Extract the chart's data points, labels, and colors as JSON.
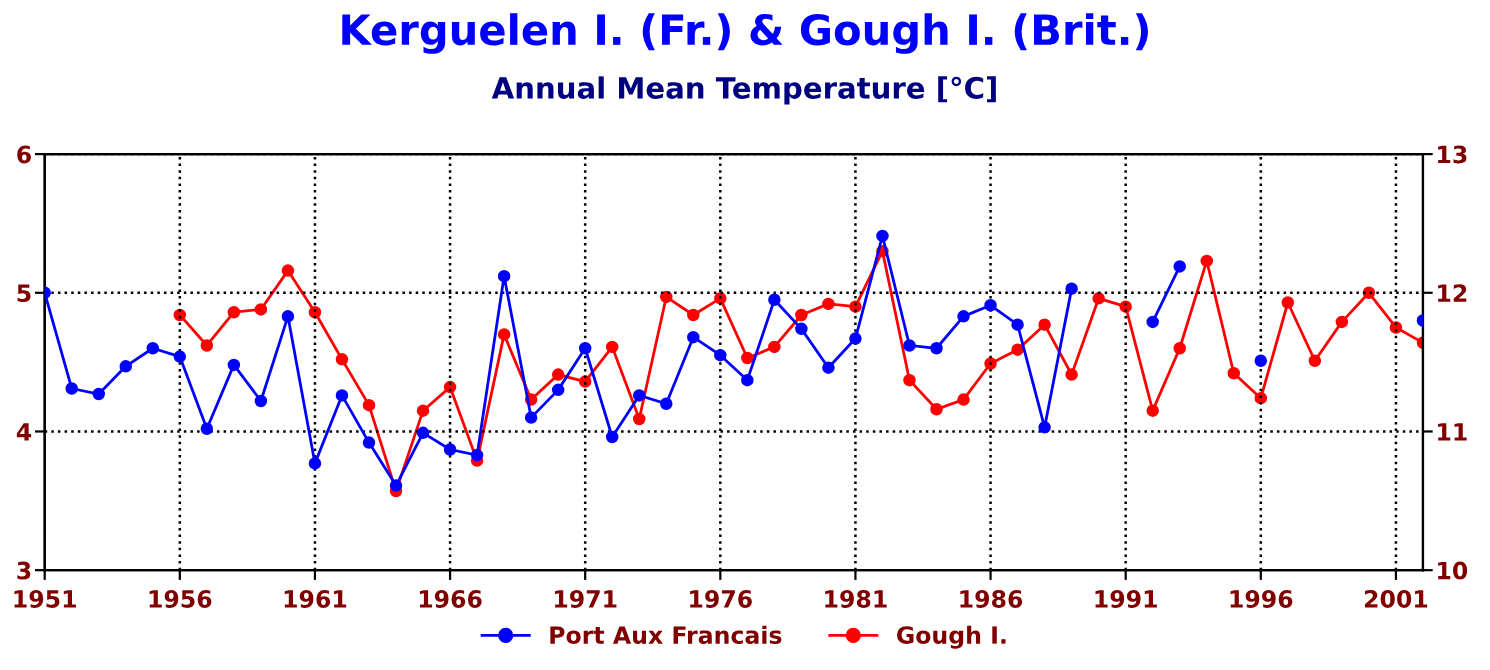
{
  "chart_data": {
    "type": "line",
    "title": "Kerguelen I. (Fr.) & Gough I. (Brit.)",
    "subtitle": "Annual Mean Temperature [°C]",
    "x": [
      1951,
      1952,
      1953,
      1954,
      1955,
      1956,
      1957,
      1958,
      1959,
      1960,
      1961,
      1962,
      1963,
      1964,
      1965,
      1966,
      1967,
      1968,
      1969,
      1970,
      1971,
      1972,
      1973,
      1974,
      1975,
      1976,
      1977,
      1978,
      1979,
      1980,
      1981,
      1982,
      1983,
      1984,
      1985,
      1986,
      1987,
      1988,
      1989,
      1990,
      1991,
      1992,
      1993,
      1994,
      1995,
      1996,
      1997,
      1998,
      1999,
      2000,
      2001,
      2002
    ],
    "series": [
      {
        "name": "Port Aux Francais",
        "color": "#0000ff",
        "axis": "y",
        "values": [
          5.0,
          4.31,
          4.27,
          4.47,
          4.6,
          4.54,
          4.02,
          4.48,
          4.22,
          4.83,
          3.77,
          4.26,
          3.92,
          3.61,
          3.99,
          3.87,
          3.83,
          5.12,
          4.1,
          4.3,
          4.6,
          3.96,
          4.26,
          4.2,
          4.68,
          4.55,
          4.37,
          4.95,
          4.74,
          4.46,
          4.67,
          5.41,
          4.62,
          4.6,
          4.83,
          4.91,
          4.77,
          4.03,
          5.03,
          null,
          null,
          4.79,
          5.19,
          null,
          null,
          4.51,
          null,
          null,
          null,
          null,
          null,
          4.8
        ]
      },
      {
        "name": "Gough I.",
        "color": "#ff0000",
        "axis": "y2",
        "values": [
          null,
          null,
          null,
          null,
          null,
          11.84,
          11.62,
          11.86,
          11.88,
          12.16,
          11.86,
          11.52,
          11.19,
          10.57,
          11.15,
          11.32,
          10.79,
          11.7,
          11.23,
          11.41,
          11.36,
          11.61,
          11.09,
          11.97,
          11.84,
          11.96,
          11.53,
          11.61,
          11.84,
          11.92,
          11.9,
          12.3,
          11.37,
          11.16,
          11.23,
          11.49,
          11.59,
          11.77,
          11.41,
          11.96,
          11.9,
          11.15,
          11.6,
          12.23,
          11.42,
          11.24,
          11.93,
          11.51,
          11.79,
          12.0,
          11.75,
          11.64
        ]
      }
    ],
    "xlim": [
      1951,
      2002
    ],
    "xticks": [
      1951,
      1956,
      1961,
      1966,
      1971,
      1976,
      1981,
      1986,
      1991,
      1996,
      2001
    ],
    "ylim": [
      3,
      6
    ],
    "yticks": [
      3,
      4,
      5,
      6
    ],
    "y2lim": [
      10,
      13
    ],
    "y2ticks": [
      10,
      11,
      12,
      13
    ],
    "grid": true,
    "legend": "bottom",
    "marker": "circle",
    "line_style": "solid"
  }
}
